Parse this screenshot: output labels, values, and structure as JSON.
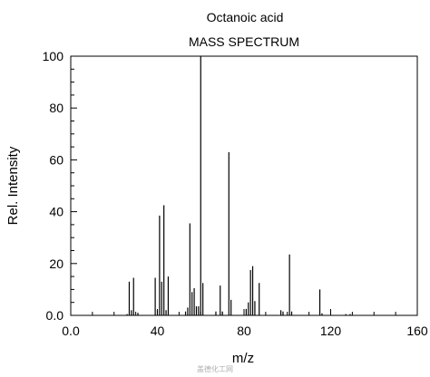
{
  "chart_data": {
    "type": "bar",
    "title": "Octanoic acid",
    "subtitle": "MASS SPECTRUM",
    "xlabel": "m/z",
    "ylabel": "Rel. Intensity",
    "xlim": [
      0,
      160
    ],
    "ylim": [
      0,
      100
    ],
    "x_ticks": [
      0,
      40,
      80,
      120,
      160
    ],
    "x_tick_labels": [
      "0.0",
      "40",
      "80",
      "120",
      "160"
    ],
    "y_ticks": [
      0,
      20,
      40,
      60,
      80,
      100
    ],
    "y_tick_labels": [
      "0.0",
      "20",
      "40",
      "60",
      "80",
      "100"
    ],
    "grid": false,
    "legend": "none",
    "bar_color": "#000000",
    "peaks": [
      {
        "mz": 26,
        "intensity": 0.5
      },
      {
        "mz": 27,
        "intensity": 13
      },
      {
        "mz": 28,
        "intensity": 2
      },
      {
        "mz": 29,
        "intensity": 14.5
      },
      {
        "mz": 31,
        "intensity": 1
      },
      {
        "mz": 39,
        "intensity": 14.5
      },
      {
        "mz": 40,
        "intensity": 2
      },
      {
        "mz": 41,
        "intensity": 38.5
      },
      {
        "mz": 42,
        "intensity": 13
      },
      {
        "mz": 43,
        "intensity": 42.5
      },
      {
        "mz": 44,
        "intensity": 2
      },
      {
        "mz": 45,
        "intensity": 15
      },
      {
        "mz": 53,
        "intensity": 1.5
      },
      {
        "mz": 54,
        "intensity": 3
      },
      {
        "mz": 55,
        "intensity": 35.5
      },
      {
        "mz": 56,
        "intensity": 9
      },
      {
        "mz": 57,
        "intensity": 10.5
      },
      {
        "mz": 58,
        "intensity": 3.5
      },
      {
        "mz": 59,
        "intensity": 3.5
      },
      {
        "mz": 60,
        "intensity": 100
      },
      {
        "mz": 61,
        "intensity": 12.5
      },
      {
        "mz": 67,
        "intensity": 1.5
      },
      {
        "mz": 69,
        "intensity": 11.5
      },
      {
        "mz": 70,
        "intensity": 1.5
      },
      {
        "mz": 73,
        "intensity": 63
      },
      {
        "mz": 74,
        "intensity": 6
      },
      {
        "mz": 81,
        "intensity": 2.5
      },
      {
        "mz": 82,
        "intensity": 5
      },
      {
        "mz": 83,
        "intensity": 17.5
      },
      {
        "mz": 84,
        "intensity": 19
      },
      {
        "mz": 85,
        "intensity": 5.5
      },
      {
        "mz": 87,
        "intensity": 12.5
      },
      {
        "mz": 97,
        "intensity": 2
      },
      {
        "mz": 98,
        "intensity": 1.5
      },
      {
        "mz": 101,
        "intensity": 23.5
      },
      {
        "mz": 102,
        "intensity": 1.5
      },
      {
        "mz": 115,
        "intensity": 10
      },
      {
        "mz": 116,
        "intensity": 0.8
      },
      {
        "mz": 127,
        "intensity": 0.5
      },
      {
        "mz": 129,
        "intensity": 0.5
      }
    ]
  },
  "watermark": "盖德化工网"
}
